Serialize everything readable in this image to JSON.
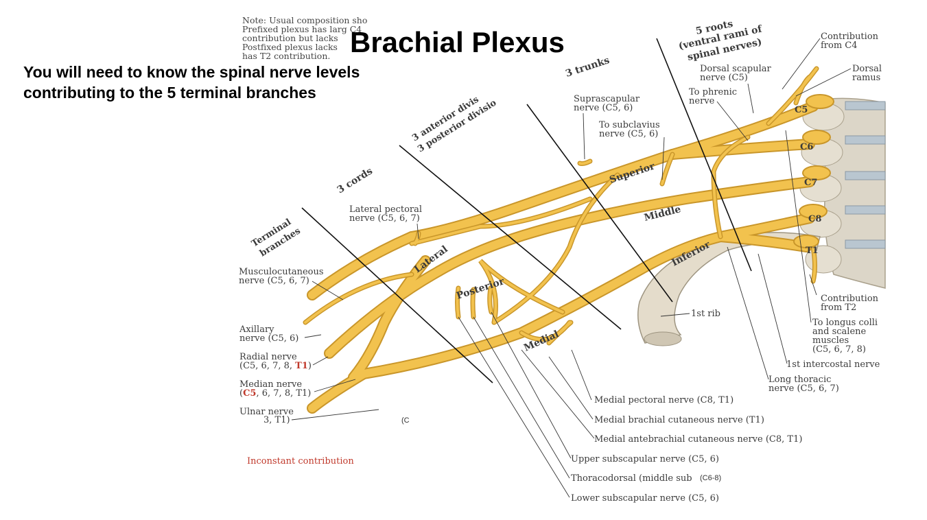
{
  "slide": {
    "title": "Brachial Plexus",
    "subtitle_line1": "You will need to know the spinal nerve levels",
    "subtitle_line2": "contributing to the 5 terminal branches"
  },
  "note": {
    "lines": [
      "Note: Usual composition sho",
      "Prefixed plexus has larg C4",
      "contribution but lacks",
      "Postfixed plexus lacks",
      "has T2 contribution."
    ]
  },
  "headers": {
    "roots_1": "5 roots",
    "roots_2": "(ventral rami of",
    "roots_3": "spinal nerves)",
    "trunks": "3 trunks",
    "divisions_1": "3 anterior divis",
    "divisions_2": "3 posterior divisio",
    "cords": "3 cords",
    "terminal_1": "Terminal",
    "terminal_2": "branches"
  },
  "roots": [
    "C5",
    "C6",
    "C7",
    "C8",
    "T1"
  ],
  "trunks": [
    "Superior",
    "Middle",
    "Inferior"
  ],
  "cords": [
    "Lateral",
    "Posterior",
    "Medial"
  ],
  "labels": {
    "contrib_c4_1": "Contribution",
    "contrib_c4_2": "from C4",
    "dorsal_ramus_1": "Dorsal",
    "dorsal_ramus_2": "ramus",
    "dorsal_scapular_1": "Dorsal scapular",
    "dorsal_scapular_2": "nerve (C5)",
    "phrenic_1": "To phrenic",
    "phrenic_2": "nerve",
    "suprascapular_1": "Suprascapular",
    "suprascapular_2": "nerve (C5, 6)",
    "subclavius_1": "To subclavius",
    "subclavius_2": "nerve (C5, 6)",
    "lateral_pectoral_1": "Lateral pectoral",
    "lateral_pectoral_2": "nerve (C5, 6, 7)",
    "musculocutaneous_1": "Musculocutaneous",
    "musculocutaneous_2": "nerve (C5, 6, 7)",
    "axillary_1": "Axillary",
    "axillary_2": "nerve (C5, 6)",
    "radial_1": "Radial nerve",
    "radial_2a": "(C5, 6, 7, 8, ",
    "radial_2b": "T1",
    "radial_2c": ")",
    "median_1": "Median nerve",
    "median_2a": "(",
    "median_2b": "C5",
    "median_2c": ", 6, 7, 8, T1)",
    "ulnar_1": "Ulnar nerve",
    "ulnar_2": "3, T1)",
    "first_rib": "1st rib",
    "contrib_t2_1": "Contribution",
    "contrib_t2_2": "from T2",
    "longus_1": "To longus colli",
    "longus_2": "and scalene",
    "longus_3": "muscles",
    "longus_4": "(C5, 6, 7, 8)",
    "intercostal": "1st intercostal nerve",
    "long_thoracic_1": "Long thoracic",
    "long_thoracic_2": "nerve (C5, 6, 7)",
    "medial_pectoral": "Medial pectoral nerve (C8, T1)",
    "medial_brachial": "Medial brachial cutaneous nerve (T1)",
    "medial_antebrachial": "Medial antebrachial cutaneous nerve  (C8, T1)",
    "upper_subscapular": "Upper subscapular nerve (C5, 6)",
    "thoracodorsal": "Thoracodorsal (middle sub",
    "lower_subscapular": "Lower subscapular nerve (C5, 6)"
  },
  "codes": {
    "ulnar_code": "(C",
    "thoracodorsal_code": "(C6-8)"
  },
  "legend": {
    "inconstant": "Inconstant contribution"
  },
  "colors": {
    "nerve": "#f2c24e",
    "nerve_dark": "#c9962a",
    "bone": "#dcd6c8",
    "accent_red": "#c0392b"
  }
}
